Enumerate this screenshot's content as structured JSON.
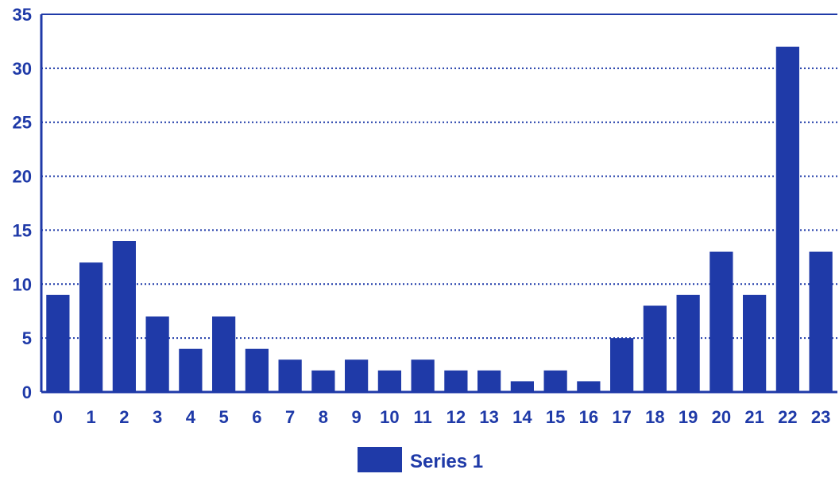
{
  "chart_data": {
    "type": "bar",
    "title": "",
    "xlabel": "",
    "ylabel": "",
    "categories": [
      "0",
      "1",
      "2",
      "3",
      "4",
      "5",
      "6",
      "7",
      "8",
      "9",
      "10",
      "11",
      "12",
      "13",
      "14",
      "15",
      "16",
      "17",
      "18",
      "19",
      "20",
      "21",
      "22",
      "23"
    ],
    "series": [
      {
        "name": "Series 1",
        "values": [
          9,
          12,
          14,
          7,
          4,
          7,
          4,
          3,
          2,
          3,
          2,
          3,
          2,
          2,
          1,
          2,
          1,
          5,
          8,
          9,
          13,
          9,
          32,
          13
        ]
      }
    ],
    "ylim": [
      0,
      35
    ],
    "yticks": [
      0,
      5,
      10,
      15,
      20,
      25,
      30,
      35
    ],
    "grid": true,
    "legend": "bottom-center",
    "colors": {
      "bar": "#1f3aa8",
      "axis": "#1f3aa8",
      "grid": "#1f3aa8",
      "text": "#1f3aa8"
    }
  }
}
